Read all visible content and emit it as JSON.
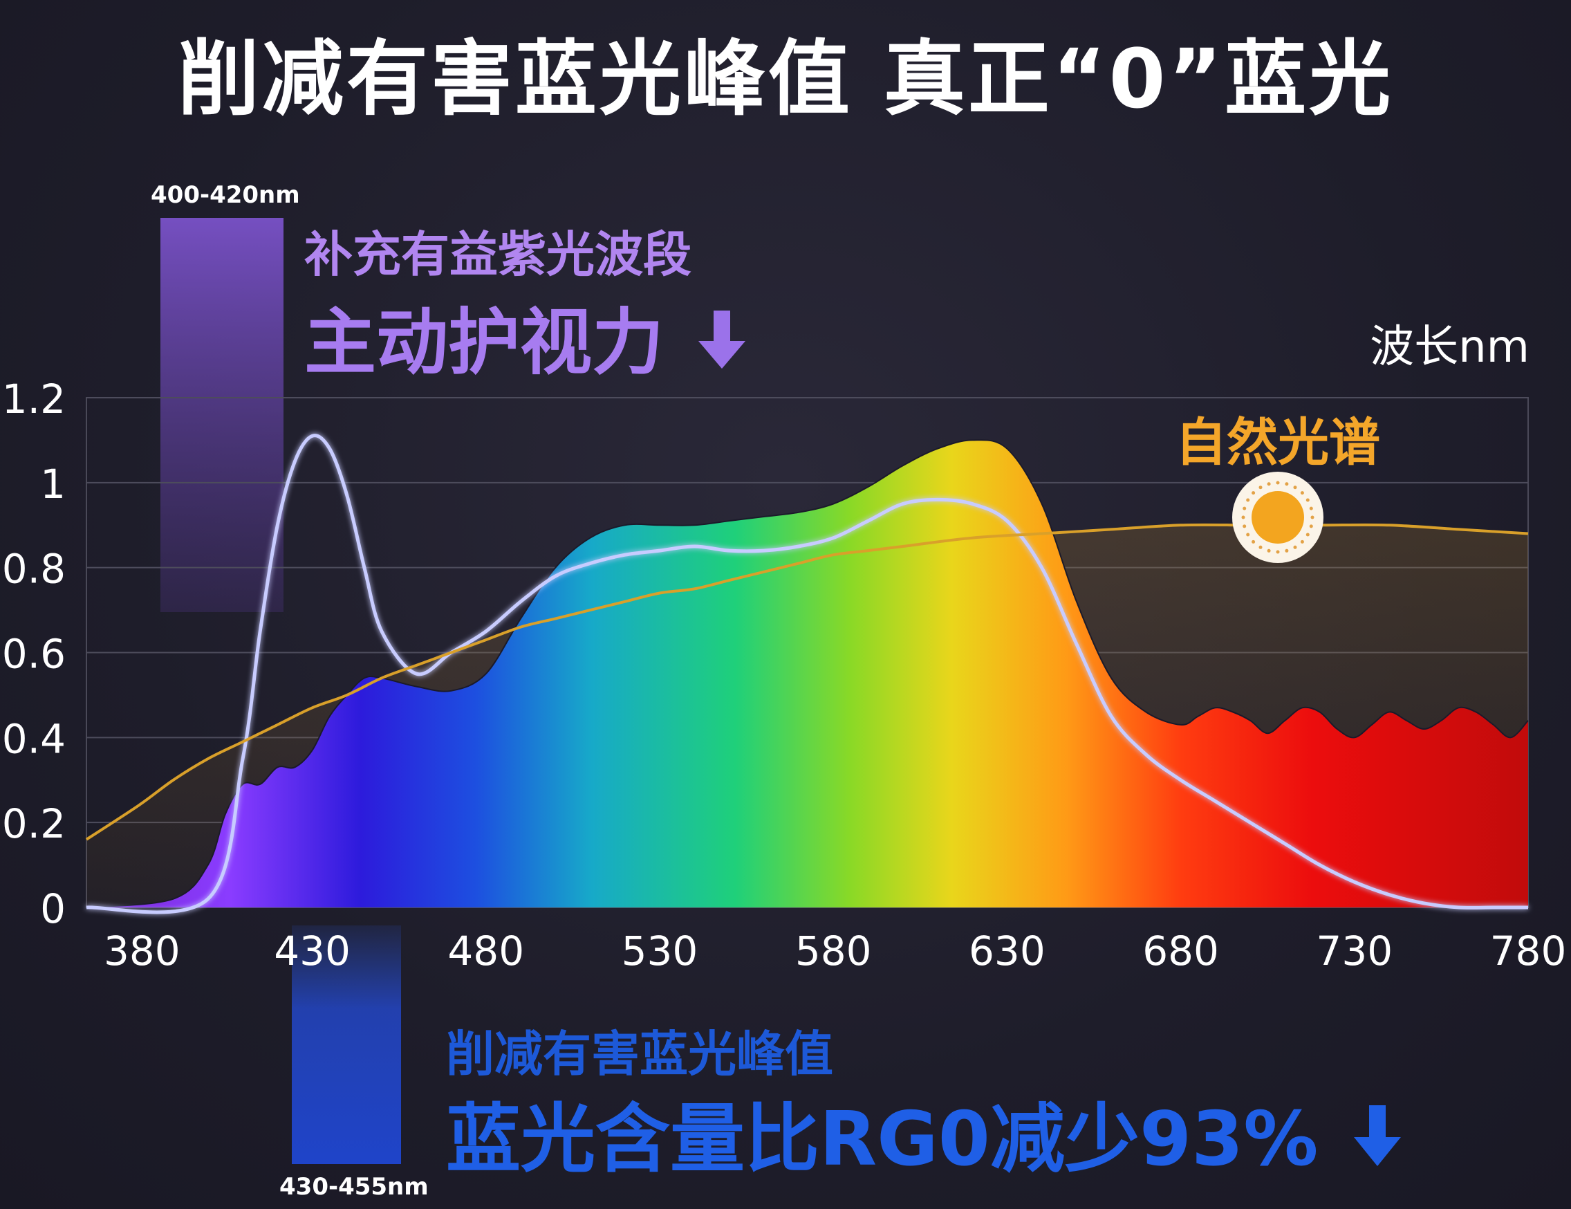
{
  "title": "削减有害蓝光峰值 真正“0”蓝光",
  "violet_band": {
    "range": "400-420nm",
    "subtitle": "补充有益紫光波段",
    "headline": "主动护视力",
    "color": "#8a5ad8"
  },
  "blue_band": {
    "range": "430-455nm",
    "subtitle": "削减有害蓝光峰值",
    "headline": "蓝光含量比RG0减少93%",
    "color": "#1f5fe6"
  },
  "natural_label": "自然光谱",
  "natural_icon": "sun-icon",
  "chart_data": {
    "type": "area",
    "xlabel": "波长nm",
    "ylabel": "",
    "x_ticks": [
      380,
      430,
      480,
      530,
      580,
      630,
      680,
      730,
      780
    ],
    "y_ticks": [
      "0",
      "0.2",
      "0.4",
      "0.6",
      "0.8",
      "1",
      "1.2"
    ],
    "xlim": [
      365,
      780
    ],
    "ylim": [
      0,
      1.2
    ],
    "grid": true,
    "series": [
      {
        "kind": "filled-rainbow",
        "x": [
          365,
          390,
          400,
          405,
          410,
          415,
          420,
          425,
          430,
          435,
          440,
          445,
          450,
          460,
          470,
          480,
          490,
          500,
          510,
          520,
          530,
          540,
          550,
          560,
          570,
          580,
          590,
          600,
          610,
          620,
          630,
          640,
          650,
          660,
          670,
          680,
          685,
          690,
          695,
          700,
          705,
          710,
          715,
          720,
          725,
          730,
          735,
          740,
          745,
          750,
          755,
          760,
          765,
          770,
          775,
          780
        ],
        "y": [
          0,
          0.02,
          0.1,
          0.22,
          0.29,
          0.29,
          0.33,
          0.33,
          0.37,
          0.45,
          0.5,
          0.54,
          0.54,
          0.52,
          0.51,
          0.55,
          0.68,
          0.8,
          0.87,
          0.9,
          0.9,
          0.9,
          0.91,
          0.92,
          0.93,
          0.95,
          0.99,
          1.04,
          1.08,
          1.1,
          1.08,
          0.95,
          0.72,
          0.54,
          0.46,
          0.43,
          0.45,
          0.47,
          0.46,
          0.44,
          0.41,
          0.44,
          0.47,
          0.46,
          0.42,
          0.4,
          0.43,
          0.46,
          0.44,
          0.42,
          0.44,
          0.47,
          0.46,
          0.43,
          0.4,
          0.44
        ]
      },
      {
        "kind": "white-line",
        "x": [
          365,
          400,
          410,
          415,
          420,
          425,
          430,
          435,
          440,
          445,
          450,
          460,
          470,
          480,
          490,
          500,
          510,
          520,
          530,
          540,
          550,
          560,
          570,
          580,
          590,
          600,
          610,
          620,
          630,
          640,
          650,
          660,
          670,
          680,
          690,
          700,
          710,
          720,
          730,
          740,
          750,
          760,
          770,
          780
        ],
        "y": [
          0,
          0.02,
          0.35,
          0.65,
          0.9,
          1.05,
          1.11,
          1.08,
          0.97,
          0.8,
          0.65,
          0.55,
          0.6,
          0.65,
          0.72,
          0.78,
          0.81,
          0.83,
          0.84,
          0.85,
          0.84,
          0.84,
          0.85,
          0.87,
          0.91,
          0.95,
          0.96,
          0.95,
          0.91,
          0.8,
          0.62,
          0.45,
          0.36,
          0.3,
          0.25,
          0.2,
          0.15,
          0.1,
          0.06,
          0.03,
          0.01,
          0,
          0,
          0
        ]
      },
      {
        "kind": "natural-spectrum",
        "name": "自然光谱",
        "x": [
          365,
          380,
          390,
          400,
          410,
          420,
          430,
          440,
          450,
          460,
          470,
          480,
          490,
          500,
          510,
          520,
          530,
          540,
          550,
          560,
          570,
          580,
          590,
          600,
          620,
          640,
          660,
          680,
          700,
          720,
          740,
          760,
          780
        ],
        "y": [
          0.16,
          0.24,
          0.3,
          0.35,
          0.39,
          0.43,
          0.47,
          0.5,
          0.54,
          0.57,
          0.6,
          0.63,
          0.66,
          0.68,
          0.7,
          0.72,
          0.74,
          0.75,
          0.77,
          0.79,
          0.81,
          0.83,
          0.84,
          0.85,
          0.87,
          0.88,
          0.89,
          0.9,
          0.9,
          0.9,
          0.9,
          0.89,
          0.88
        ]
      }
    ]
  }
}
